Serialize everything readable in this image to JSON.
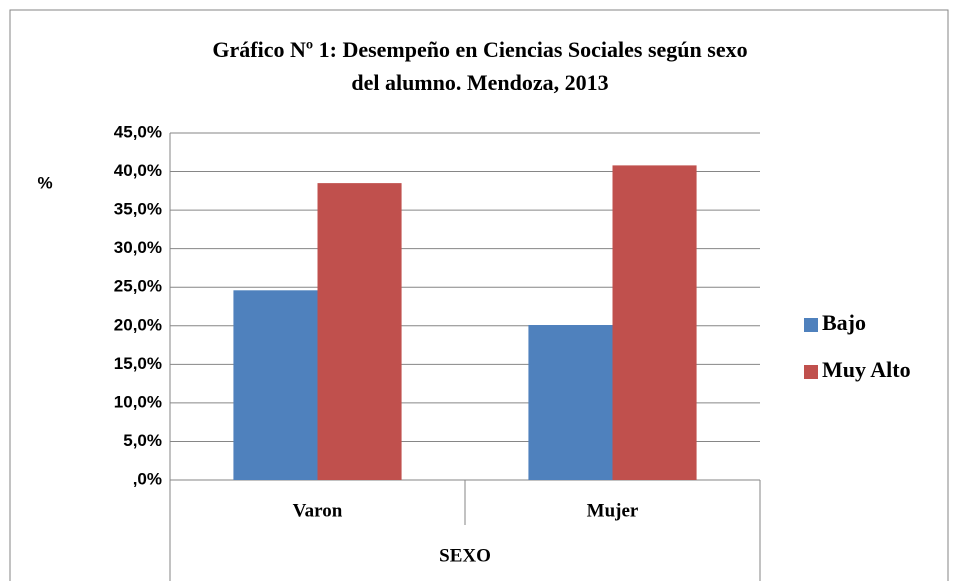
{
  "chart_data": {
    "type": "bar",
    "title": [
      "Gráfico Nº 1: Desempeño en Ciencias Sociales según sexo",
      "del alumno. Mendoza, 2013"
    ],
    "y_label": "%",
    "x_label": "SEXO",
    "categories": [
      "Varon",
      "Mujer"
    ],
    "series": [
      {
        "name": "Bajo",
        "color": "#4f81bd",
        "values": [
          24.6,
          20.1
        ]
      },
      {
        "name": "Muy Alto",
        "color": "#c0504d",
        "values": [
          38.5,
          40.8
        ]
      }
    ],
    "ylim": [
      0,
      45
    ],
    "yticks": [
      {
        "value": 0,
        "label": ",0%"
      },
      {
        "value": 5,
        "label": "5,0%"
      },
      {
        "value": 10,
        "label": "10,0%"
      },
      {
        "value": 15,
        "label": "15,0%"
      },
      {
        "value": 20,
        "label": "20,0%"
      },
      {
        "value": 25,
        "label": "25,0%"
      },
      {
        "value": 30,
        "label": "30,0%"
      },
      {
        "value": 35,
        "label": "35,0%"
      },
      {
        "value": 40,
        "label": "40,0%"
      },
      {
        "value": 45,
        "label": "45,0%"
      }
    ],
    "grid": true,
    "legend": "right"
  }
}
